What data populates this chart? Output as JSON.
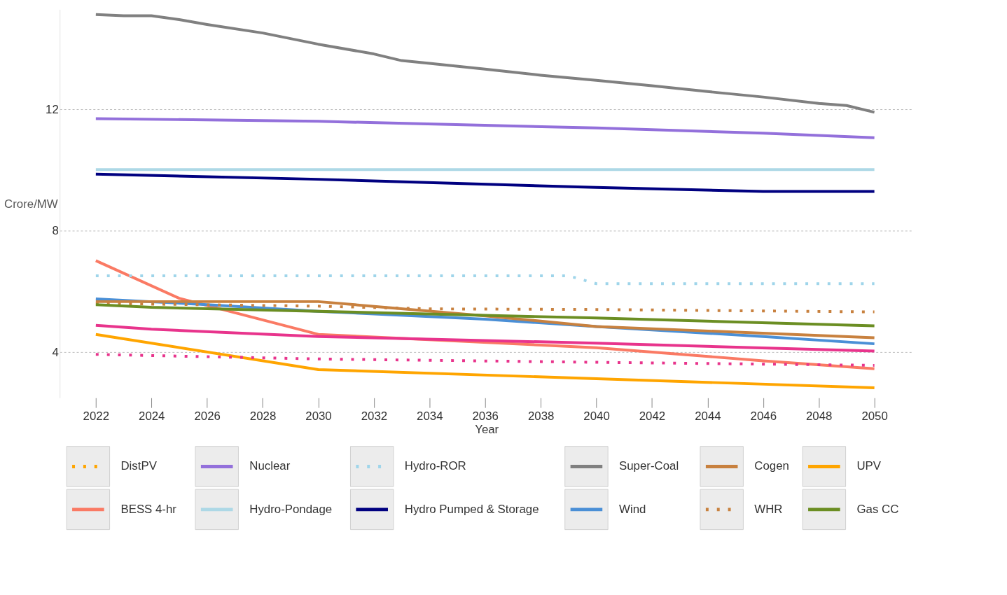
{
  "chart_data": {
    "type": "line",
    "xlabel": "Year",
    "ylabel": "Crore/MW",
    "xlim": [
      2020.7,
      2051.4
    ],
    "xticks": [
      2022,
      2024,
      2026,
      2028,
      2030,
      2032,
      2034,
      2036,
      2038,
      2040,
      2042,
      2044,
      2046,
      2048,
      2050
    ],
    "ylim": [
      2.5,
      15.3
    ],
    "yticks": [
      4,
      8,
      12
    ],
    "grid": "y",
    "legend": "bottom",
    "series": [
      {
        "name": "DistPV",
        "color": "#ffa500",
        "line_style": "dotted",
        "values": [
          null
        ]
      },
      {
        "name": "BESS 4-hr",
        "color": "#fa7a64",
        "line_style": "solid",
        "x": [
          2022,
          2025,
          2030,
          2040,
          2046,
          2050
        ],
        "values": [
          7.02,
          5.78,
          4.59,
          4.15,
          3.72,
          3.46
        ]
      },
      {
        "name": "Nuclear",
        "color": "#9370db",
        "line_style": "solid",
        "x": [
          2022,
          2030,
          2040,
          2046,
          2050
        ],
        "values": [
          11.7,
          11.61,
          11.39,
          11.22,
          11.07
        ]
      },
      {
        "name": "Hydro-Pondage",
        "color": "#add8e6",
        "line_style": "solid",
        "x": [
          2022,
          2050
        ],
        "values": [
          10.02,
          10.02
        ]
      },
      {
        "name": "Hydro-ROR",
        "color": "#9fd5ea",
        "line_style": "dotted",
        "x": [
          2022,
          2039,
          2040,
          2050
        ],
        "values": [
          6.52,
          6.52,
          6.26,
          6.26
        ]
      },
      {
        "name": "Hydro Pumped & Storage",
        "color": "#000080",
        "line_style": "solid",
        "x": [
          2022,
          2030,
          2040,
          2046,
          2050
        ],
        "values": [
          9.87,
          9.7,
          9.43,
          9.3,
          9.3
        ]
      },
      {
        "name": "Super-Coal",
        "color": "#808080",
        "line_style": "solid",
        "x": [
          2022,
          2023,
          2024,
          2025,
          2026,
          2028,
          2030,
          2032,
          2033,
          2034,
          2036,
          2038,
          2040,
          2042,
          2044,
          2046,
          2048,
          2049,
          2050
        ],
        "values": [
          15.13,
          15.09,
          15.09,
          14.96,
          14.8,
          14.52,
          14.15,
          13.83,
          13.61,
          13.52,
          13.33,
          13.13,
          12.96,
          12.78,
          12.59,
          12.41,
          12.2,
          12.13,
          11.91
        ]
      },
      {
        "name": "Wind",
        "color": "#4a8fd6",
        "line_style": "solid",
        "x": [
          2022,
          2026,
          2030,
          2036,
          2040,
          2046,
          2050
        ],
        "values": [
          5.76,
          5.57,
          5.35,
          5.09,
          4.85,
          4.52,
          4.28
        ]
      },
      {
        "name": "Cogen",
        "color": "#c8813f",
        "line_style": "solid",
        "x": [
          2022,
          2030,
          2036,
          2040,
          2050
        ],
        "values": [
          5.67,
          5.67,
          5.2,
          4.85,
          4.48
        ]
      },
      {
        "name": "WHR",
        "color": "#c8813f",
        "line_style": "dotted",
        "x": [
          2022,
          2030,
          2034,
          2040,
          2050
        ],
        "values": [
          5.61,
          5.52,
          5.43,
          5.41,
          5.33
        ]
      },
      {
        "name": "UPV",
        "color": "#ffa500",
        "line_style": "solid",
        "x": [
          2022,
          2030,
          2040,
          2050
        ],
        "values": [
          4.59,
          3.43,
          3.13,
          2.83
        ]
      },
      {
        "name": "Gas CC",
        "color": "#6b8e23",
        "line_style": "solid",
        "x": [
          2022,
          2024,
          2030,
          2040,
          2050
        ],
        "values": [
          5.57,
          5.48,
          5.35,
          5.13,
          4.87
        ]
      },
      {
        "color": "#e8348c",
        "line_style": "solid",
        "x": [
          2022,
          2024,
          2030,
          2040,
          2050
        ],
        "values": [
          4.89,
          4.76,
          4.52,
          4.3,
          4.04
        ]
      },
      {
        "color": "#e8348c",
        "line_style": "dotted",
        "x": [
          2022,
          2030,
          2040,
          2050
        ],
        "values": [
          3.93,
          3.78,
          3.67,
          3.57
        ]
      }
    ]
  }
}
